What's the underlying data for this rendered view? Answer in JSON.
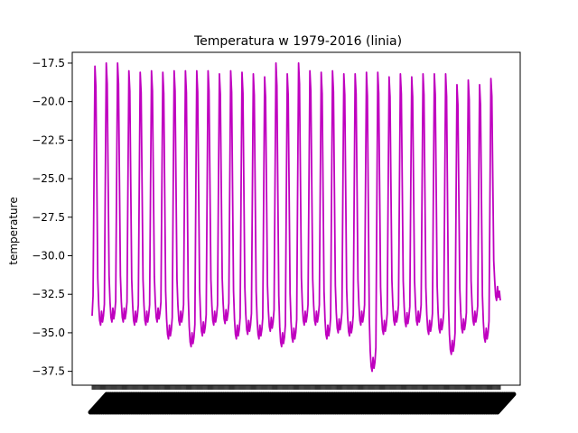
{
  "chart_data": {
    "type": "line",
    "title": "Temperatura w 1979-2016 (linia)",
    "xlabel": "",
    "ylabel": "temperature",
    "ylim": [
      -38.4,
      -16.8
    ],
    "yticks": [
      -17.5,
      -20.0,
      -22.5,
      -25.0,
      -27.5,
      -30.0,
      -32.5,
      -35.0,
      -37.5
    ],
    "ytick_labels": [
      "−17.5",
      "−20.0",
      "−22.5",
      "−25.0",
      "−27.5",
      "−30.0",
      "−32.5",
      "−35.0",
      "−37.5"
    ],
    "grid": false,
    "legend": "none",
    "x_tick_labels": "dense rotated monthly labels (illegible)",
    "series": [
      {
        "color": "#bf00bf",
        "cycle_length": 12,
        "peaks": [
          -17.7,
          -17.5,
          -17.5,
          -18.0,
          -18.1,
          -18.0,
          -18.1,
          -18.0,
          -18.0,
          -18.0,
          -18.0,
          -18.2,
          -18.0,
          -18.1,
          -18.2,
          -18.4,
          -17.5,
          -18.2,
          -17.5,
          -18.0,
          -18.1,
          -18.0,
          -18.2,
          -18.2,
          -18.1,
          -18.1,
          -18.4,
          -18.2,
          -18.4,
          -18.2,
          -18.2,
          -18.2,
          -18.9,
          -18.6,
          -18.9,
          -18.5
        ],
        "troughs": [
          -34.5,
          -34.3,
          -34.3,
          -34.5,
          -34.5,
          -34.3,
          -35.4,
          -34.5,
          -35.9,
          -35.2,
          -34.5,
          -34.4,
          -35.4,
          -35.1,
          -35.4,
          -34.9,
          -35.9,
          -35.6,
          -34.5,
          -34.5,
          -35.4,
          -35.0,
          -35.2,
          -34.5,
          -37.5,
          -35.1,
          -34.5,
          -34.6,
          -34.5,
          -35.1,
          -35.0,
          -36.4,
          -35.0,
          -34.5,
          -35.6
        ],
        "start": -33.9,
        "end": -32.9
      }
    ]
  }
}
